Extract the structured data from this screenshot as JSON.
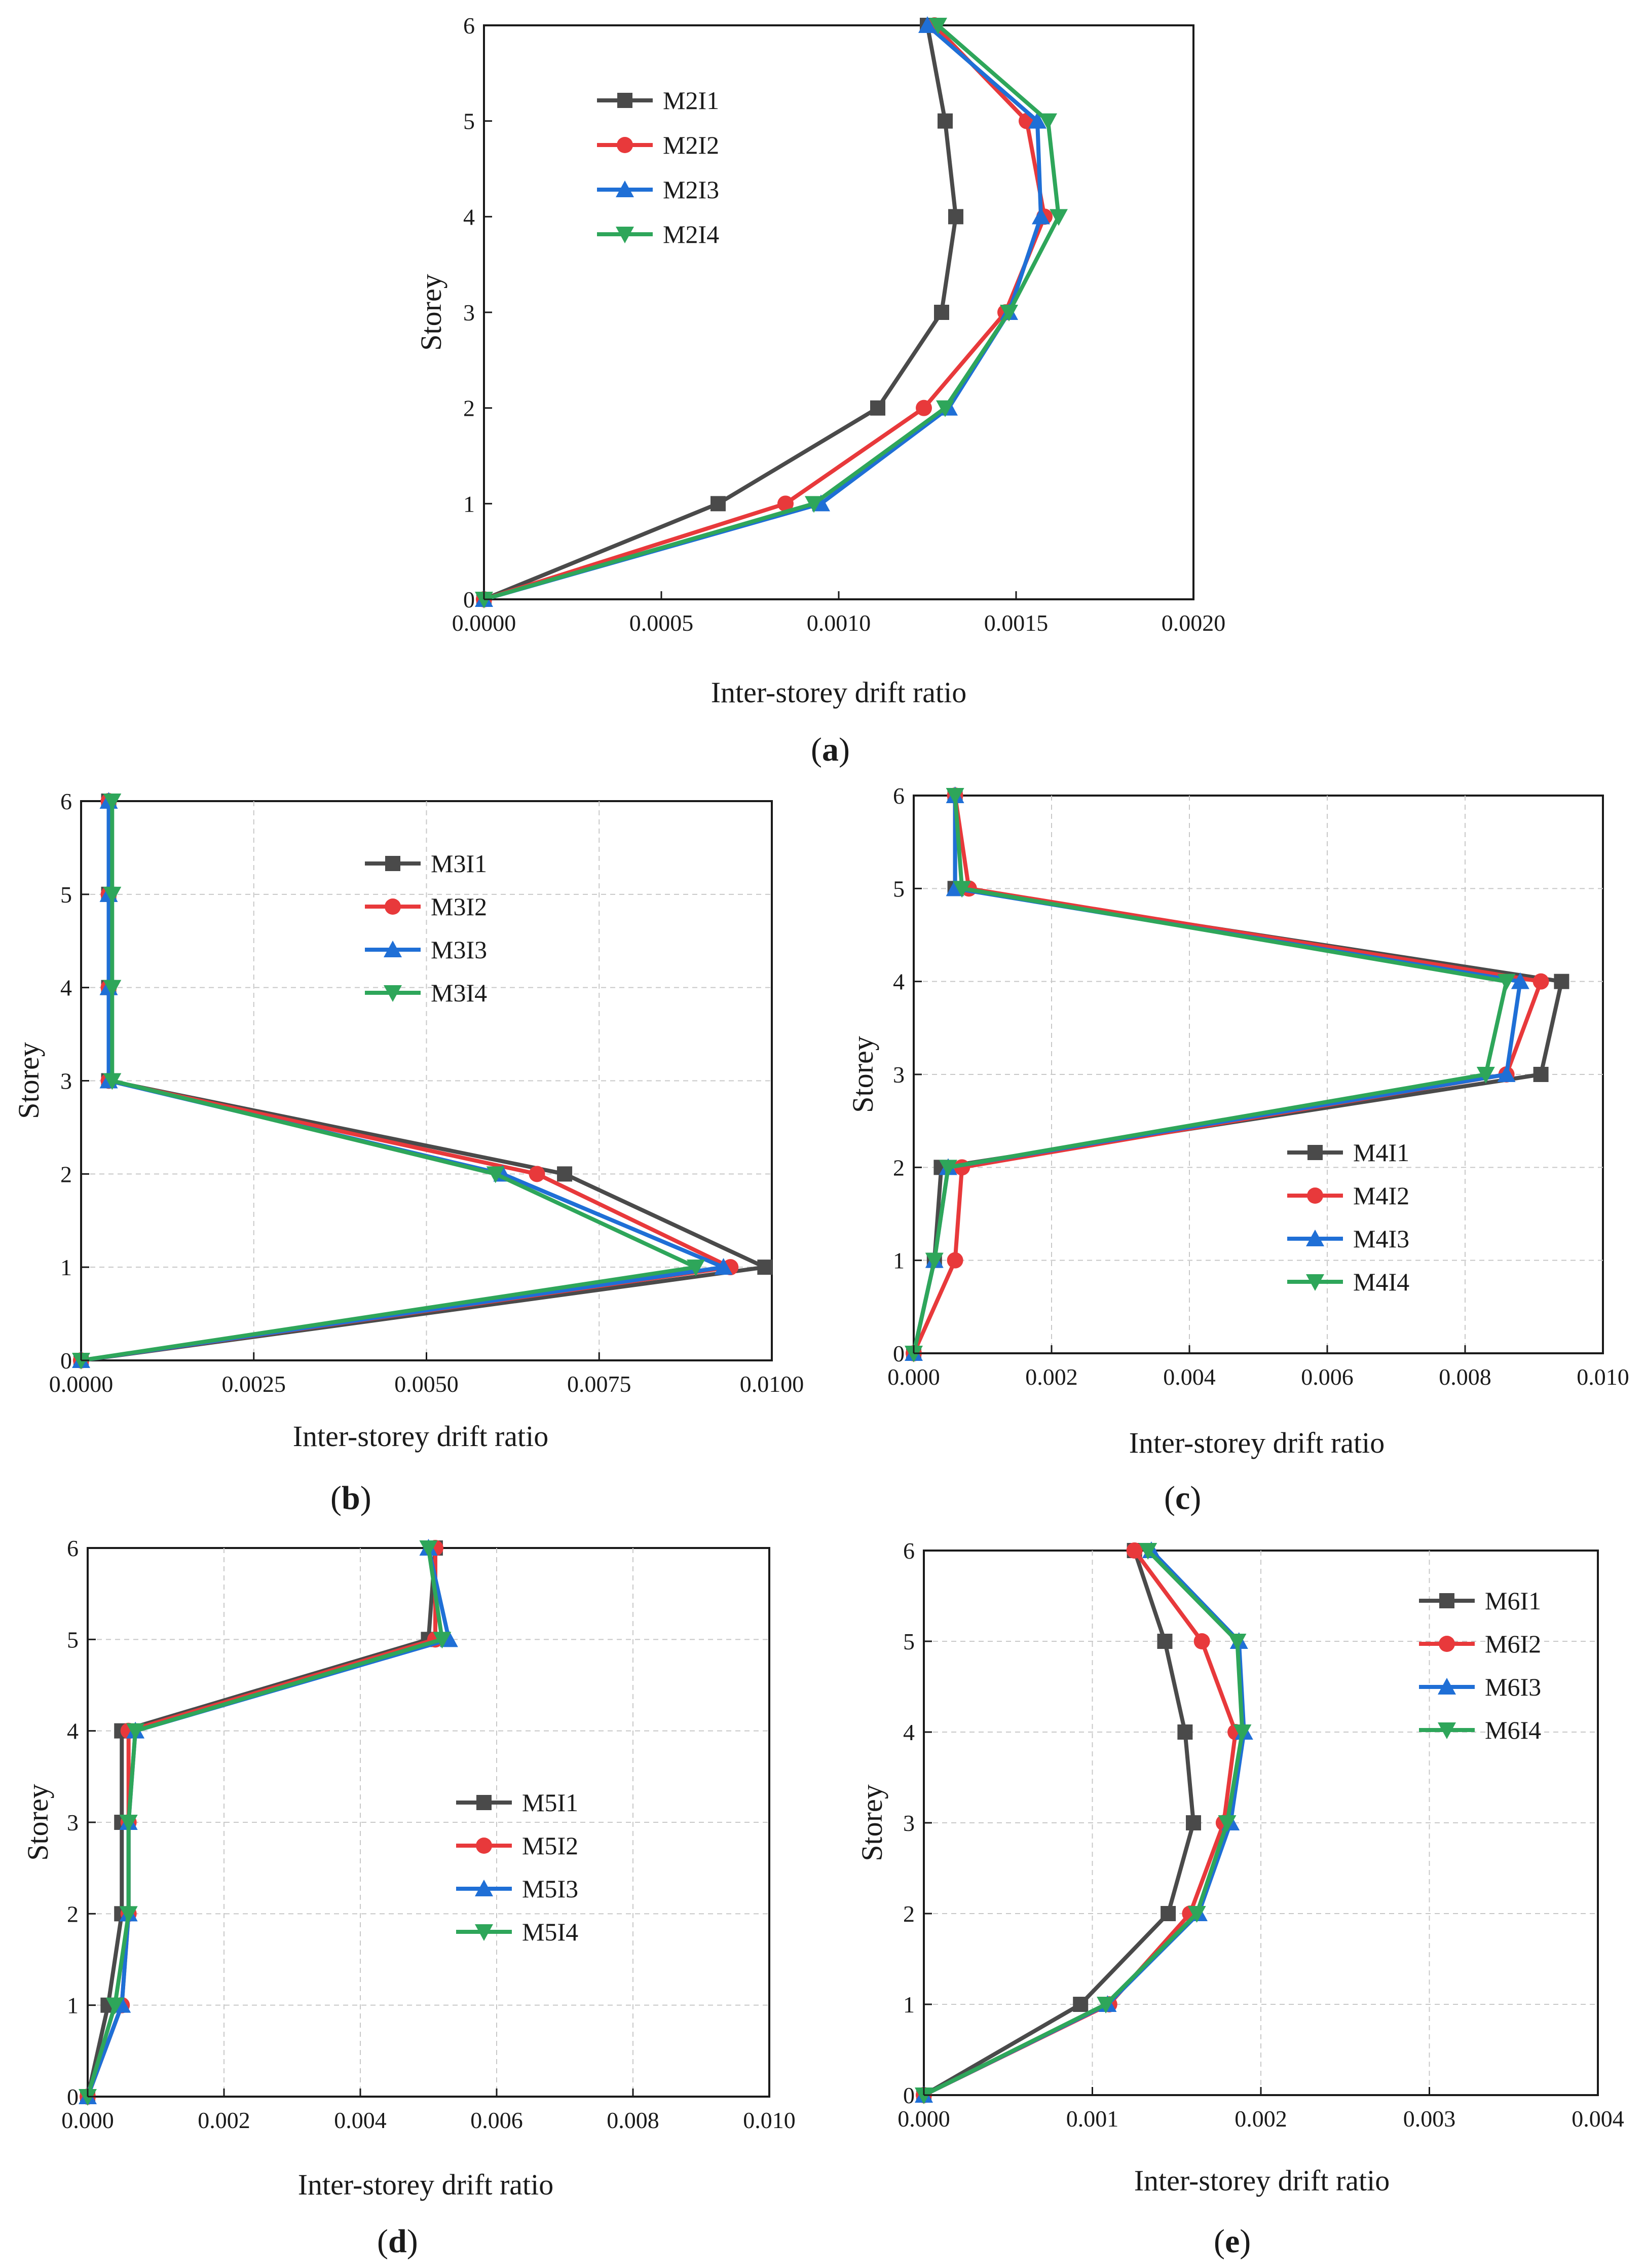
{
  "chart_data": [
    {
      "type": "line",
      "panel_label": "a",
      "xlabel": "Inter-storey drift ratio",
      "ylabel": "Storey",
      "xlim": [
        0,
        0.002
      ],
      "ylim": [
        0,
        6
      ],
      "xticks": [
        "0.0000",
        "0.0005",
        "0.0010",
        "0.0015",
        "0.0020"
      ],
      "yticks": [
        "0",
        "1",
        "2",
        "3",
        "4",
        "5",
        "6"
      ],
      "grid": false,
      "legend_position": "top-left",
      "series": [
        {
          "name": "M2I1",
          "marker": "square",
          "color": "#4a4a4a",
          "x": [
            0,
            0.00066,
            0.00111,
            0.00129,
            0.00133,
            0.0013,
            0.00125
          ],
          "y": [
            0,
            1,
            2,
            3,
            4,
            5,
            6
          ]
        },
        {
          "name": "M2I2",
          "marker": "circle",
          "color": "#e8393b",
          "x": [
            0,
            0.00085,
            0.00124,
            0.00147,
            0.00158,
            0.00153,
            0.00127
          ],
          "y": [
            0,
            1,
            2,
            3,
            4,
            5,
            6
          ]
        },
        {
          "name": "M2I3",
          "marker": "triangle-up",
          "color": "#1f6fd6",
          "x": [
            0,
            0.00095,
            0.00131,
            0.00148,
            0.00157,
            0.00156,
            0.00125
          ],
          "y": [
            0,
            1,
            2,
            3,
            4,
            5,
            6
          ]
        },
        {
          "name": "M2I4",
          "marker": "triangle-down",
          "color": "#2ea65a",
          "x": [
            0,
            0.00093,
            0.0013,
            0.00148,
            0.00162,
            0.00159,
            0.00128
          ],
          "y": [
            0,
            1,
            2,
            3,
            4,
            5,
            6
          ]
        }
      ]
    },
    {
      "type": "line",
      "panel_label": "b",
      "xlabel": "Inter-storey drift ratio",
      "ylabel": "Storey",
      "xlim": [
        0,
        0.01
      ],
      "ylim": [
        0,
        6
      ],
      "xticks": [
        "0.0000",
        "0.0025",
        "0.0050",
        "0.0075",
        "0.0100"
      ],
      "yticks": [
        "0",
        "1",
        "2",
        "3",
        "4",
        "5",
        "6"
      ],
      "grid": true,
      "legend_position": "upper-center",
      "series": [
        {
          "name": "M3I1",
          "marker": "square",
          "color": "#4a4a4a",
          "x": [
            0,
            0.0099,
            0.007,
            0.0004,
            0.0004,
            0.0004,
            0.0004
          ],
          "y": [
            0,
            1,
            2,
            3,
            4,
            5,
            6
          ]
        },
        {
          "name": "M3I2",
          "marker": "circle",
          "color": "#e8393b",
          "x": [
            0,
            0.0094,
            0.0066,
            0.0004,
            0.0004,
            0.0004,
            0.0004
          ],
          "y": [
            0,
            1,
            2,
            3,
            4,
            5,
            6
          ]
        },
        {
          "name": "M3I3",
          "marker": "triangle-up",
          "color": "#1f6fd6",
          "x": [
            0,
            0.0093,
            0.0061,
            0.0004,
            0.0004,
            0.0004,
            0.0004
          ],
          "y": [
            0,
            1,
            2,
            3,
            4,
            5,
            6
          ]
        },
        {
          "name": "M3I4",
          "marker": "triangle-down",
          "color": "#2ea65a",
          "x": [
            0,
            0.0089,
            0.006,
            0.00045,
            0.00045,
            0.00045,
            0.00045
          ],
          "y": [
            0,
            1,
            2,
            3,
            4,
            5,
            6
          ]
        }
      ]
    },
    {
      "type": "line",
      "panel_label": "c",
      "xlabel": "Inter-storey drift ratio",
      "ylabel": "Storey",
      "xlim": [
        0,
        0.01
      ],
      "ylim": [
        0,
        6
      ],
      "xticks": [
        "0.000",
        "0.002",
        "0.004",
        "0.006",
        "0.008",
        "0.010"
      ],
      "yticks": [
        "0",
        "1",
        "2",
        "3",
        "4",
        "5",
        "6"
      ],
      "grid": true,
      "legend_position": "lower-center",
      "series": [
        {
          "name": "M4I1",
          "marker": "square",
          "color": "#4a4a4a",
          "x": [
            0,
            0.0003,
            0.0004,
            0.0091,
            0.0094,
            0.0006,
            0.0006
          ],
          "y": [
            0,
            1,
            2,
            3,
            4,
            5,
            6
          ]
        },
        {
          "name": "M4I2",
          "marker": "circle",
          "color": "#e8393b",
          "x": [
            0,
            0.0006,
            0.0007,
            0.0086,
            0.0091,
            0.0008,
            0.0006
          ],
          "y": [
            0,
            1,
            2,
            3,
            4,
            5,
            6
          ]
        },
        {
          "name": "M4I3",
          "marker": "triangle-up",
          "color": "#1f6fd6",
          "x": [
            0,
            0.0003,
            0.0005,
            0.0086,
            0.0088,
            0.0006,
            0.0006
          ],
          "y": [
            0,
            1,
            2,
            3,
            4,
            5,
            6
          ]
        },
        {
          "name": "M4I4",
          "marker": "triangle-down",
          "color": "#2ea65a",
          "x": [
            0,
            0.0003,
            0.0005,
            0.0083,
            0.0086,
            0.0007,
            0.0006
          ],
          "y": [
            0,
            1,
            2,
            3,
            4,
            5,
            6
          ]
        }
      ]
    },
    {
      "type": "line",
      "panel_label": "d",
      "xlabel": "Inter-storey drift ratio",
      "ylabel": "Storey",
      "xlim": [
        0,
        0.01
      ],
      "ylim": [
        0,
        6
      ],
      "xticks": [
        "0.000",
        "0.002",
        "0.004",
        "0.006",
        "0.008",
        "0.010"
      ],
      "yticks": [
        "0",
        "1",
        "2",
        "3",
        "4",
        "5",
        "6"
      ],
      "grid": true,
      "legend_position": "center-right",
      "series": [
        {
          "name": "M5I1",
          "marker": "square",
          "color": "#4a4a4a",
          "x": [
            0,
            0.0003,
            0.0005,
            0.0005,
            0.0005,
            0.005,
            0.0051
          ],
          "y": [
            0,
            1,
            2,
            3,
            4,
            5,
            6
          ]
        },
        {
          "name": "M5I2",
          "marker": "circle",
          "color": "#e8393b",
          "x": [
            0,
            0.0005,
            0.0006,
            0.0006,
            0.0006,
            0.0051,
            0.0051
          ],
          "y": [
            0,
            1,
            2,
            3,
            4,
            5,
            6
          ]
        },
        {
          "name": "M5I3",
          "marker": "triangle-up",
          "color": "#1f6fd6",
          "x": [
            0,
            0.0005,
            0.0006,
            0.0006,
            0.0007,
            0.0053,
            0.005
          ],
          "y": [
            0,
            1,
            2,
            3,
            4,
            5,
            6
          ]
        },
        {
          "name": "M5I4",
          "marker": "triangle-down",
          "color": "#2ea65a",
          "x": [
            0,
            0.0004,
            0.0006,
            0.0006,
            0.0007,
            0.0052,
            0.005
          ],
          "y": [
            0,
            1,
            2,
            3,
            4,
            5,
            6
          ]
        }
      ]
    },
    {
      "type": "line",
      "panel_label": "e",
      "xlabel": "Inter-storey drift ratio",
      "ylabel": "Storey",
      "xlim": [
        0,
        0.004
      ],
      "ylim": [
        0,
        6
      ],
      "xticks": [
        "0.000",
        "0.001",
        "0.002",
        "0.003",
        "0.004"
      ],
      "yticks": [
        "0",
        "1",
        "2",
        "3",
        "4",
        "5",
        "6"
      ],
      "grid": true,
      "legend_position": "top-right",
      "series": [
        {
          "name": "M6I1",
          "marker": "square",
          "color": "#4a4a4a",
          "x": [
            0,
            0.00093,
            0.00145,
            0.0016,
            0.00155,
            0.00143,
            0.00125
          ],
          "y": [
            0,
            1,
            2,
            3,
            4,
            5,
            6
          ]
        },
        {
          "name": "M6I2",
          "marker": "circle",
          "color": "#e8393b",
          "x": [
            0,
            0.0011,
            0.00158,
            0.00178,
            0.00185,
            0.00165,
            0.00125
          ],
          "y": [
            0,
            1,
            2,
            3,
            4,
            5,
            6
          ]
        },
        {
          "name": "M6I3",
          "marker": "triangle-up",
          "color": "#1f6fd6",
          "x": [
            0,
            0.00109,
            0.00163,
            0.00182,
            0.0019,
            0.00187,
            0.00135
          ],
          "y": [
            0,
            1,
            2,
            3,
            4,
            5,
            6
          ]
        },
        {
          "name": "M6I4",
          "marker": "triangle-down",
          "color": "#2ea65a",
          "x": [
            0,
            0.00108,
            0.00162,
            0.0018,
            0.00189,
            0.00186,
            0.00133
          ],
          "y": [
            0,
            1,
            2,
            3,
            4,
            5,
            6
          ]
        }
      ]
    }
  ]
}
